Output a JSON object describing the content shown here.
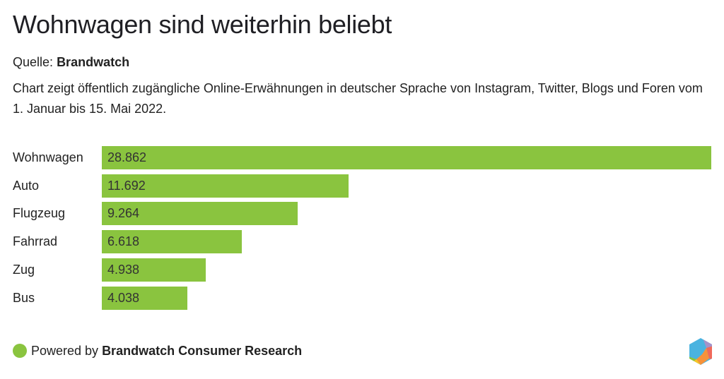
{
  "header": {
    "title": "Wohnwagen sind weiterhin beliebt",
    "source_label": "Quelle:",
    "source_name": "Brandwatch",
    "description": "Chart zeigt öffentlich zugängliche Online-Erwähnungen in deutscher Sprache von Instagram, Twitter, Blogs und Foren vom 1. Januar bis 15. Mai 2022."
  },
  "chart_data": {
    "type": "bar",
    "orientation": "horizontal",
    "title": "Wohnwagen sind weiterhin beliebt",
    "xlabel": "",
    "ylabel": "",
    "categories": [
      "Wohnwagen",
      "Auto",
      "Flugzeug",
      "Fahrrad",
      "Zug",
      "Bus"
    ],
    "values": [
      28862,
      11692,
      9264,
      6618,
      4938,
      4038
    ],
    "value_labels": [
      "28.862",
      "11.692",
      "9.264",
      "6.618",
      "4.938",
      "4.038"
    ],
    "xlim": [
      0,
      28862
    ],
    "grid": false,
    "legend": "none",
    "bar_color": "#8ac43f"
  },
  "footer": {
    "powered_by": "Powered by",
    "brand": "Brandwatch Consumer Research",
    "dot_color": "#8ac43f",
    "logo_icon": "brandwatch-hexagon-logo"
  }
}
